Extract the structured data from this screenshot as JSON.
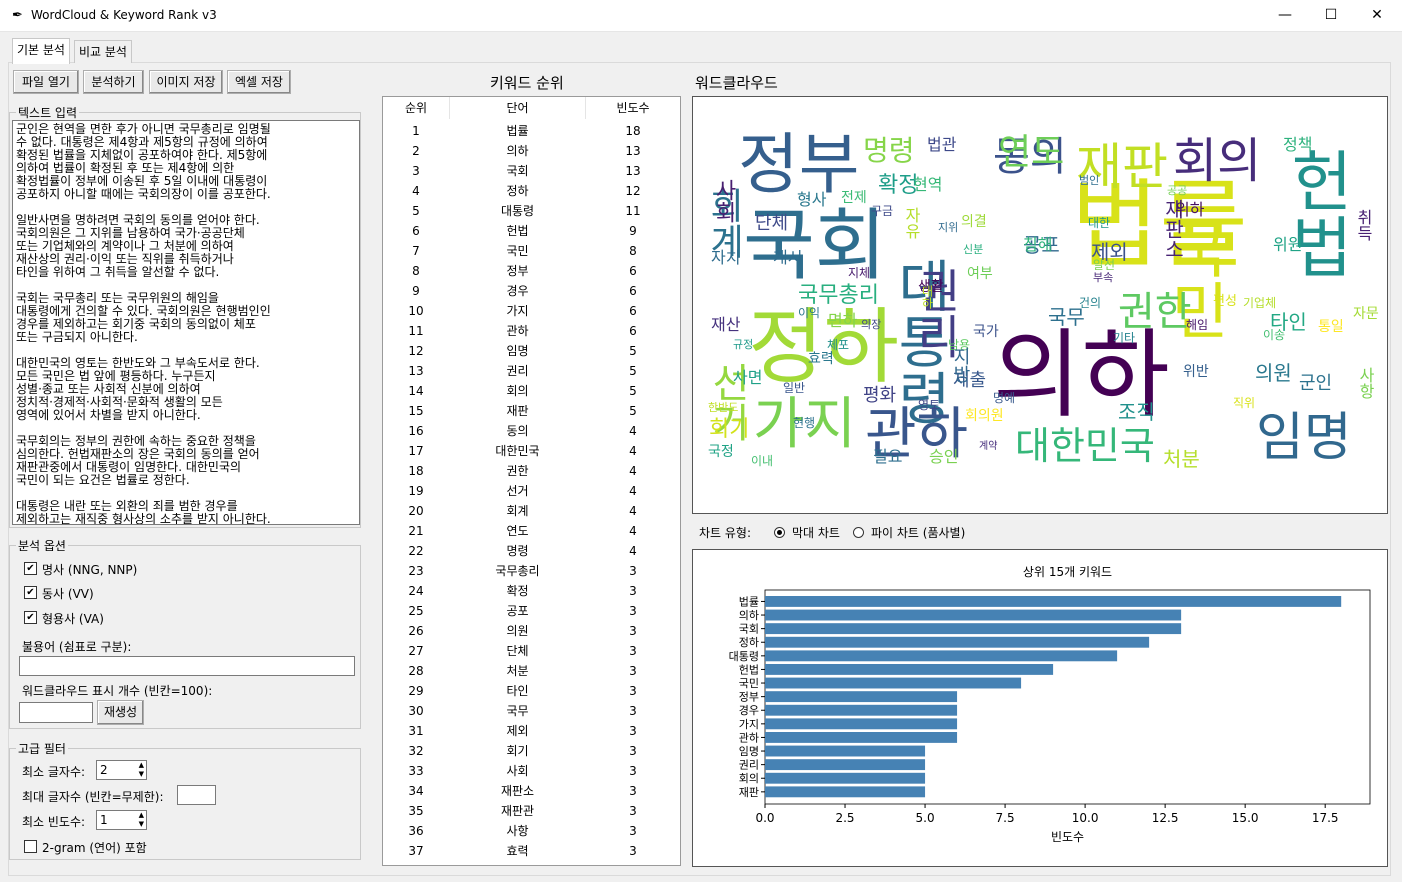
{
  "window": {
    "title": "WordCloud & Keyword Rank v3",
    "icon": "feather-icon",
    "controls": {
      "minimize": "—",
      "maximize": "☐",
      "close": "✕"
    }
  },
  "tabs": [
    {
      "label": "기본 분석",
      "active": true
    },
    {
      "label": "비교 분석",
      "active": false
    }
  ],
  "toolbar": {
    "open_file": "파일 열기",
    "analyze": "분석하기",
    "save_image": "이미지 저장",
    "save_excel": "엑셀 저장"
  },
  "text_input": {
    "label": "텍스트 입력",
    "content": "군인은 현역을 면한 후가 아니면 국무총리로 임명될\n수 없다. 대통령은 제4항과 제5항의 규정에 의하여\n확정된 법률을 지체없이 공포하여야 한다. 제5항에\n의하여 법률이 확정된 후 또는 제4항에 의한\n확정법률이 정부에 이송된 후 5일 이내에 대통령이\n공포하지 아니할 때에는 국회의장이 이를 공포한다.\n\n일반사면을 명하려면 국회의 동의를 얻어야 한다.\n국회의원은 그 지위를 남용하여 국가·공공단체\n또는 기업체와의 계약이나 그 처분에 의하여\n재산상의 권리·이익 또는 직위를 취득하거나\n타인을 위하여 그 취득을 알선할 수 없다.\n\n국회는 국무총리 또는 국무위원의 해임을\n대통령에게 건의할 수 있다. 국회의원은 현행범인인\n경우를 제외하고는 회기중 국회의 동의없이 체포\n또는 구금되지 아니한다.\n\n대한민국의 영토는 한반도와 그 부속도서로 한다.\n모든 국민은 법 앞에 평등하다. 누구든지\n성별·종교 또는 사회적 신분에 의하여\n정치적·경제적·사회적·문화적 생활의 모든\n영역에 있어서 차별을 받지 아니한다.\n\n국무회의는 정부의 권한에 속하는 중요한 정책을\n심의한다. 헌법재판소의 장은 국회의 동의를 얻어\n재판관중에서 대통령이 임명한다. 대한민국의\n국민이 되는 요건은 법률로 정한다.\n\n대통령은 내란 또는 외환의 죄를 범한 경우를\n제외하고는 재직중 형사상의 소추를 받지 아니한다."
  },
  "analysis_options": {
    "label": "분석 옵션",
    "noun": {
      "label": "명사 (NNG, NNP)",
      "checked": true
    },
    "verb": {
      "label": "동사 (VV)",
      "checked": true
    },
    "adjective": {
      "label": "형용사 (VA)",
      "checked": true
    },
    "stopwords_label": "불용어 (쉼표로 구분):",
    "stopwords_value": "",
    "wc_count_label": "워드클라우드 표시 개수 (빈칸=100):",
    "wc_count_value": "",
    "regenerate": "재생성"
  },
  "advanced_filter": {
    "label": "고급 필터",
    "min_len_label": "최소 글자수:",
    "min_len_value": "2",
    "max_len_label": "최대 글자수 (빈칸=무제한):",
    "max_len_value": "",
    "min_freq_label": "최소 빈도수:",
    "min_freq_value": "1",
    "bigram": {
      "label": "2-gram (연어) 포함",
      "checked": false
    },
    "spin_up": "▲",
    "spin_down": "▼"
  },
  "ranking": {
    "title": "키워드 순위",
    "headers": {
      "rank": "순위",
      "word": "단어",
      "freq": "빈도수"
    },
    "rows": [
      [
        "1",
        "법률",
        "18"
      ],
      [
        "2",
        "의하",
        "13"
      ],
      [
        "3",
        "국회",
        "13"
      ],
      [
        "4",
        "정하",
        "12"
      ],
      [
        "5",
        "대통령",
        "11"
      ],
      [
        "6",
        "헌법",
        "9"
      ],
      [
        "7",
        "국민",
        "8"
      ],
      [
        "8",
        "정부",
        "6"
      ],
      [
        "9",
        "경우",
        "6"
      ],
      [
        "10",
        "가지",
        "6"
      ],
      [
        "11",
        "관하",
        "6"
      ],
      [
        "12",
        "임명",
        "5"
      ],
      [
        "13",
        "권리",
        "5"
      ],
      [
        "14",
        "회의",
        "5"
      ],
      [
        "15",
        "재판",
        "5"
      ],
      [
        "16",
        "동의",
        "4"
      ],
      [
        "17",
        "대한민국",
        "4"
      ],
      [
        "18",
        "권한",
        "4"
      ],
      [
        "19",
        "선거",
        "4"
      ],
      [
        "20",
        "회계",
        "4"
      ],
      [
        "21",
        "연도",
        "4"
      ],
      [
        "22",
        "명령",
        "4"
      ],
      [
        "23",
        "국무총리",
        "3"
      ],
      [
        "24",
        "확정",
        "3"
      ],
      [
        "25",
        "공포",
        "3"
      ],
      [
        "26",
        "의원",
        "3"
      ],
      [
        "27",
        "단체",
        "3"
      ],
      [
        "28",
        "처분",
        "3"
      ],
      [
        "29",
        "타인",
        "3"
      ],
      [
        "30",
        "국무",
        "3"
      ],
      [
        "31",
        "제외",
        "3"
      ],
      [
        "32",
        "회기",
        "3"
      ],
      [
        "33",
        "사회",
        "3"
      ],
      [
        "34",
        "재판소",
        "3"
      ],
      [
        "35",
        "재판관",
        "3"
      ],
      [
        "36",
        "사항",
        "3"
      ],
      [
        "37",
        "효력",
        "3"
      ]
    ]
  },
  "wordcloud": {
    "title": "워드클라우드",
    "words": [
      {
        "t": "법률",
        "c": "#d8e219"
      },
      {
        "t": "국회",
        "c": "#2e6e8e"
      },
      {
        "t": "정하",
        "c": "#a2da37"
      },
      {
        "t": "의하",
        "c": "#440154"
      },
      {
        "t": "헌법",
        "c": "#21918c"
      },
      {
        "t": "국민",
        "c": "#d8e219"
      },
      {
        "t": "정부",
        "c": "#355f8d"
      },
      {
        "t": "대통령",
        "c": "#2e6e8e"
      },
      {
        "t": "가지",
        "c": "#7ad151"
      },
      {
        "t": "관하",
        "c": "#39568c"
      },
      {
        "t": "임명",
        "c": "#31688e"
      },
      {
        "t": "권리",
        "c": "#433e85"
      },
      {
        "t": "재판",
        "c": "#c2df23"
      },
      {
        "t": "회의",
        "c": "#472d7b"
      },
      {
        "t": "대한민국",
        "c": "#35b779"
      },
      {
        "t": "선거",
        "c": "#95d840"
      },
      {
        "t": "동의",
        "c": "#3b528b"
      },
      {
        "t": "권한",
        "c": "#5ec962"
      },
      {
        "t": "회계",
        "c": "#2c728e"
      },
      {
        "t": "연도",
        "c": "#6ece58"
      },
      {
        "t": "명령",
        "c": "#86d549"
      },
      {
        "t": "국무총리",
        "c": "#29af7f"
      },
      {
        "t": "확정",
        "c": "#1f9e89"
      },
      {
        "t": "공포",
        "c": "#31688e"
      },
      {
        "t": "의원",
        "c": "#2a788e"
      },
      {
        "t": "단체",
        "c": "#3e4a89"
      },
      {
        "t": "처분",
        "c": "#b5de2b"
      },
      {
        "t": "타인",
        "c": "#22a884"
      },
      {
        "t": "국무",
        "c": "#2d708e"
      },
      {
        "t": "제외",
        "c": "#3b528b"
      },
      {
        "t": "회기",
        "c": "#d2e21b"
      },
      {
        "t": "사회",
        "c": "#481f70"
      },
      {
        "t": "재판소",
        "c": "#482475"
      },
      {
        "t": "정책",
        "c": "#2db27d"
      },
      {
        "t": "현역",
        "c": "#37b878"
      },
      {
        "t": "군인",
        "c": "#2c728e"
      },
      {
        "t": "조직",
        "c": "#21918c"
      },
      {
        "t": "평화",
        "c": "#414487"
      },
      {
        "t": "위원",
        "c": "#20a386"
      },
      {
        "t": "위하",
        "c": "#481467"
      },
      {
        "t": "취득",
        "c": "#482173"
      },
      {
        "t": "면하",
        "c": "#84d44b"
      },
      {
        "t": "재산",
        "c": "#46327e"
      },
      {
        "t": "사면",
        "c": "#1fa188"
      },
      {
        "t": "사항",
        "c": "#7ad151"
      },
      {
        "t": "효력",
        "c": "#2a788e"
      },
      {
        "t": "제출",
        "c": "#38588c"
      },
      {
        "t": "생활",
        "c": "#440154"
      },
      {
        "t": "필요",
        "c": "#2e6e8e"
      },
      {
        "t": "승인",
        "c": "#7ad151"
      },
      {
        "t": "형사",
        "c": "#2a788e"
      },
      {
        "t": "자유",
        "c": "#b5de2b"
      },
      {
        "t": "전제",
        "c": "#3bbb75"
      },
      {
        "t": "법관",
        "c": "#3e4989"
      },
      {
        "t": "의결",
        "c": "#9fda3a"
      },
      {
        "t": "자치",
        "c": "#2f6c8e"
      },
      {
        "t": "개시",
        "c": "#2f6c8e"
      },
      {
        "t": "침해",
        "c": "#2fb47c"
      },
      {
        "t": "여부",
        "c": "#6ece58"
      },
      {
        "t": "이익",
        "c": "#2a788e"
      },
      {
        "t": "규정",
        "c": "#1f9a8a"
      },
      {
        "t": "체포",
        "c": "#21918c"
      },
      {
        "t": "남용",
        "c": "#5ec962"
      },
      {
        "t": "국정",
        "c": "#20a386"
      },
      {
        "t": "이내",
        "c": "#44bf70"
      },
      {
        "t": "일반",
        "c": "#39568c"
      },
      {
        "t": "한반도",
        "c": "#c0df25"
      },
      {
        "t": "현행",
        "c": "#2c728e"
      },
      {
        "t": "영토",
        "c": "#3f4788"
      },
      {
        "t": "계약",
        "c": "#472f7d"
      },
      {
        "t": "위반",
        "c": "#355f8d"
      },
      {
        "t": "편성",
        "c": "#d8e219"
      },
      {
        "t": "기업체",
        "c": "#b5de2b"
      },
      {
        "t": "통일",
        "c": "#fde725"
      },
      {
        "t": "이송",
        "c": "#44bf70"
      },
      {
        "t": "해임",
        "c": "#481769"
      },
      {
        "t": "기타",
        "c": "#25838e"
      },
      {
        "t": "건의",
        "c": "#26828e"
      },
      {
        "t": "알선",
        "c": "#7ad151"
      },
      {
        "t": "의장",
        "c": "#404688"
      },
      {
        "t": "부속",
        "c": "#482878"
      },
      {
        "t": "지체",
        "c": "#481b6d"
      },
      {
        "t": "대하",
        "c": "#bddf26"
      },
      {
        "t": "지위",
        "c": "#306a8e"
      },
      {
        "t": "공공",
        "c": "#75d054"
      },
      {
        "t": "범인",
        "c": "#2e6e8e"
      },
      {
        "t": "신분",
        "c": "#29af7f"
      },
      {
        "t": "자문",
        "c": "#a5db36"
      },
      {
        "t": "직위",
        "c": "#d8e219"
      },
      {
        "t": "지방",
        "c": "#31688e"
      },
      {
        "t": "국가",
        "c": "#3b528b"
      },
      {
        "t": "회의원",
        "c": "#fde725"
      },
      {
        "t": "명예",
        "c": "#38588c"
      },
      {
        "t": "대한",
        "c": "#1f978b"
      },
      {
        "t": "구금",
        "c": "#3e4989"
      }
    ]
  },
  "chart_type": {
    "label": "차트 유형:",
    "bar": {
      "label": "막대 차트",
      "selected": true
    },
    "pie": {
      "label": "파이 차트 (품사별)",
      "selected": false
    }
  },
  "chart_data": {
    "type": "bar",
    "orientation": "horizontal",
    "title": "상위 15개 키워드",
    "xlabel": "빈도수",
    "ylabel": "",
    "categories": [
      "법률",
      "의하",
      "국회",
      "정하",
      "대통령",
      "헌법",
      "국민",
      "정부",
      "경우",
      "가지",
      "관하",
      "임명",
      "권리",
      "회의",
      "재판"
    ],
    "values": [
      18,
      13,
      13,
      12,
      11,
      9,
      8,
      6,
      6,
      6,
      6,
      5,
      5,
      5,
      5
    ],
    "xlim": [
      0,
      18.9
    ],
    "xticks": [
      "0.0",
      "2.5",
      "5.0",
      "7.5",
      "10.0",
      "12.5",
      "15.0",
      "17.5"
    ],
    "color": "#4682b4",
    "grid": false
  }
}
